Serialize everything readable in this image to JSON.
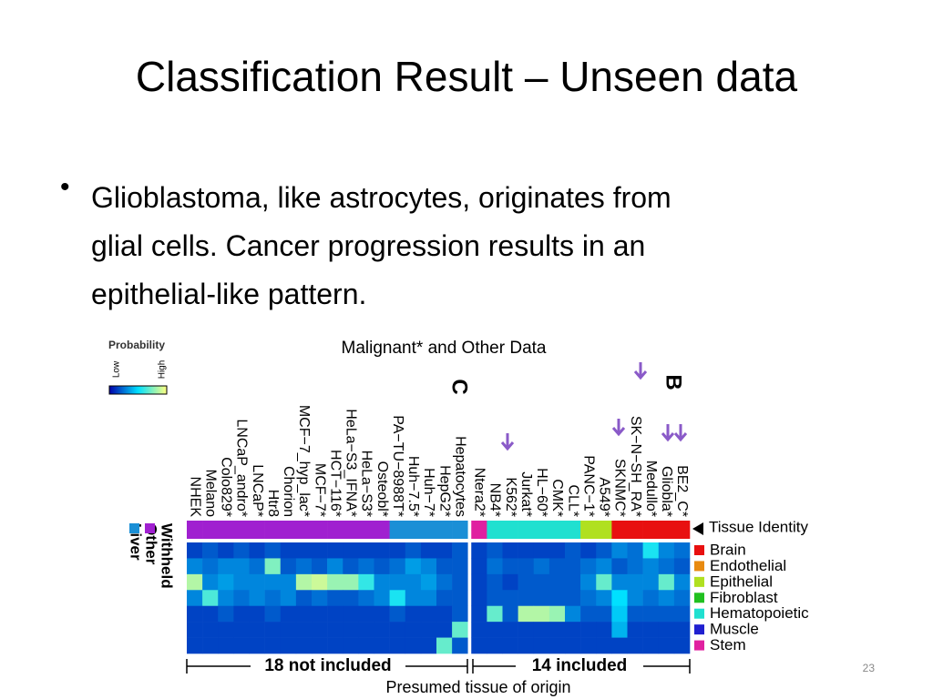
{
  "title": "Classification Result – Unseen data",
  "bullet_lines": [
    "Glioblastoma, like astrocytes, originates from",
    "glial cells. Cancer progression results in an",
    "epithelial-like pattern."
  ],
  "figure": {
    "title": "Malignant* and Other Data",
    "colorbar": {
      "title": "Probability",
      "low": "Low",
      "high": "High"
    },
    "panel_labels": [
      "C",
      "B"
    ],
    "identity_label": "Tissue Identity",
    "columns": [
      "NHEK",
      "Melano",
      "Colo829*",
      "LNCaP_andro*",
      "LNCaP*",
      "Htr8",
      "Chorion",
      "MCF−7_hyp_lac*",
      "MCF−7*",
      "HCT−116*",
      "HeLa−S3_IFNA*",
      "HeLa−S3*",
      "Osteobl*",
      "PA−TU−8988T*",
      "Huh−7.5*",
      "Huh−7*",
      "HepG2*",
      "Hepatocytes",
      "Ntera2*",
      "NB4*",
      "K562*",
      "Jurkat*",
      "HL−60*",
      "CMK*",
      "CLL*",
      "PANC−1*",
      "A549*",
      "SKNMC*",
      "SK−N−SH_RA*",
      "Medullo*",
      "Gliobla*",
      "BE2_C*"
    ],
    "identity": [
      "Other",
      "Other",
      "Other",
      "Other",
      "Other",
      "Other",
      "Other",
      "Other",
      "Other",
      "Other",
      "Other",
      "Other",
      "Other",
      "Liver",
      "Liver",
      "Liver",
      "Liver",
      "Liver",
      "Stem",
      "Hematopoietic",
      "Hematopoietic",
      "Hematopoietic",
      "Hematopoietic",
      "Hematopoietic",
      "Hematopoietic",
      "Epithelial",
      "Epithelial",
      "Brain",
      "Brain",
      "Brain",
      "Brain",
      "Brain"
    ],
    "left_legend": [
      {
        "name": "Withheld",
        "color": "#ffffff"
      },
      {
        "name": "Other",
        "color": "#a020d0"
      },
      {
        "name": "Liver",
        "color": "#1a8fd6"
      }
    ],
    "rows": [
      {
        "name": "Brain",
        "color": "#e81010"
      },
      {
        "name": "Endothelial",
        "color": "#e88a10"
      },
      {
        "name": "Epithelial",
        "color": "#b0e020"
      },
      {
        "name": "Fibroblast",
        "color": "#20c020"
      },
      {
        "name": "Hematopoietic",
        "color": "#20e0d0"
      },
      {
        "name": "Muscle",
        "color": "#2020d0"
      },
      {
        "name": "Stem",
        "color": "#e020a0"
      }
    ],
    "values": [
      [
        0.15,
        0.2,
        0.15,
        0.2,
        0.15,
        0.2,
        0.15,
        0.15,
        0.15,
        0.15,
        0.15,
        0.15,
        0.15,
        0.15,
        0.2,
        0.15,
        0.15,
        0.2,
        0.15,
        0.2,
        0.15,
        0.15,
        0.15,
        0.15,
        0.2,
        0.15,
        0.2,
        0.3,
        0.25,
        0.55,
        0.3,
        0.25
      ],
      [
        0.3,
        0.25,
        0.3,
        0.3,
        0.25,
        0.75,
        0.2,
        0.25,
        0.2,
        0.3,
        0.2,
        0.25,
        0.2,
        0.25,
        0.35,
        0.3,
        0.2,
        0.2,
        0.15,
        0.25,
        0.2,
        0.2,
        0.25,
        0.2,
        0.2,
        0.25,
        0.3,
        0.2,
        0.25,
        0.3,
        0.25,
        0.2
      ],
      [
        0.85,
        0.3,
        0.35,
        0.3,
        0.3,
        0.3,
        0.3,
        0.85,
        0.9,
        0.8,
        0.8,
        0.6,
        0.3,
        0.3,
        0.3,
        0.35,
        0.25,
        0.2,
        0.15,
        0.2,
        0.15,
        0.2,
        0.2,
        0.2,
        0.2,
        0.3,
        0.7,
        0.3,
        0.3,
        0.3,
        0.7,
        0.3
      ],
      [
        0.3,
        0.65,
        0.3,
        0.25,
        0.3,
        0.25,
        0.3,
        0.2,
        0.25,
        0.2,
        0.2,
        0.25,
        0.3,
        0.55,
        0.3,
        0.3,
        0.2,
        0.2,
        0.15,
        0.2,
        0.2,
        0.2,
        0.2,
        0.2,
        0.2,
        0.25,
        0.3,
        0.5,
        0.3,
        0.25,
        0.3,
        0.25
      ],
      [
        0.15,
        0.15,
        0.2,
        0.15,
        0.15,
        0.2,
        0.15,
        0.15,
        0.15,
        0.15,
        0.15,
        0.15,
        0.15,
        0.2,
        0.15,
        0.15,
        0.15,
        0.2,
        0.15,
        0.7,
        0.2,
        0.85,
        0.85,
        0.8,
        0.3,
        0.2,
        0.2,
        0.45,
        0.2,
        0.2,
        0.2,
        0.2
      ],
      [
        0.15,
        0.15,
        0.15,
        0.15,
        0.15,
        0.15,
        0.15,
        0.15,
        0.15,
        0.15,
        0.15,
        0.15,
        0.15,
        0.15,
        0.15,
        0.15,
        0.15,
        0.7,
        0.15,
        0.15,
        0.15,
        0.15,
        0.15,
        0.15,
        0.15,
        0.15,
        0.15,
        0.4,
        0.15,
        0.15,
        0.15,
        0.15
      ],
      [
        0.15,
        0.15,
        0.15,
        0.15,
        0.15,
        0.15,
        0.15,
        0.15,
        0.15,
        0.15,
        0.15,
        0.15,
        0.15,
        0.15,
        0.15,
        0.15,
        0.7,
        0.2,
        0.15,
        0.15,
        0.15,
        0.15,
        0.15,
        0.15,
        0.15,
        0.15,
        0.15,
        0.15,
        0.15,
        0.15,
        0.15,
        0.15
      ]
    ],
    "groups": [
      "18 not included",
      "14 included"
    ]
  },
  "caption": "Presumed tissue of origin",
  "page_number": "23"
}
